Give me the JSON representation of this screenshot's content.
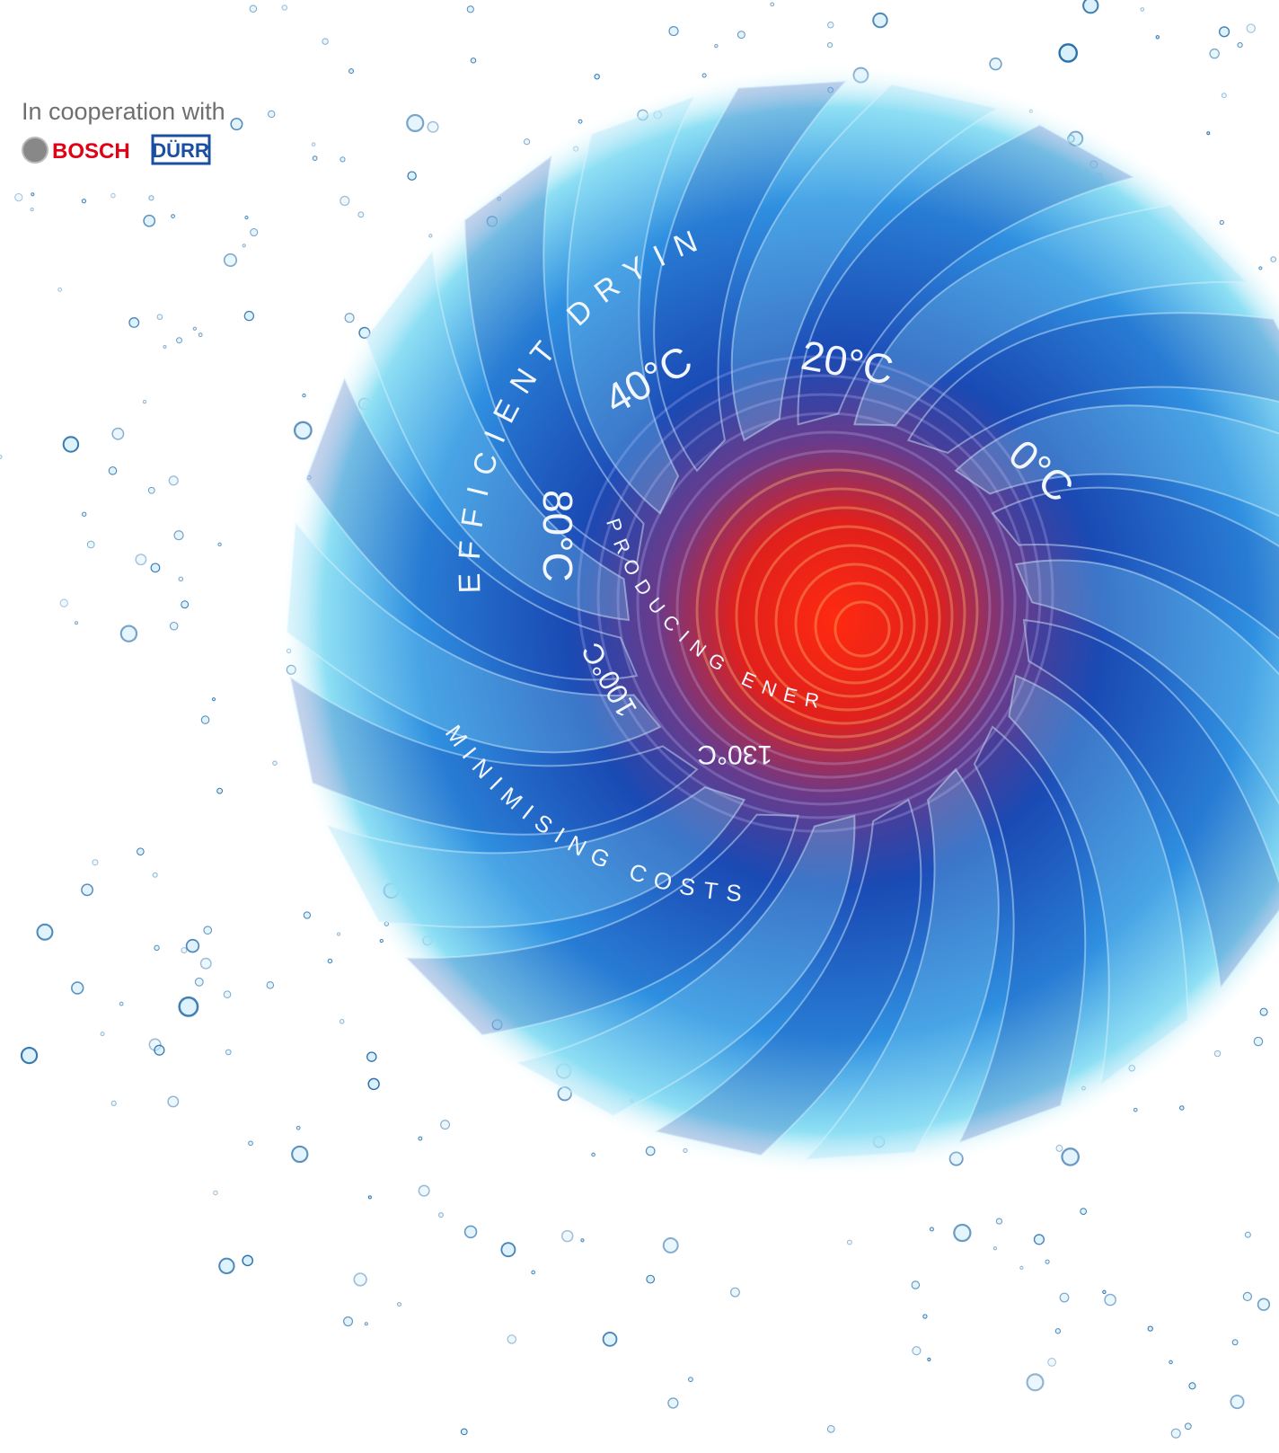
{
  "header": {
    "cooperation": "In cooperation with",
    "logos": [
      "BOSCH",
      "DÜRR"
    ]
  },
  "artwork": {
    "arcs": [
      "EFFICIENT DRYING",
      "PRODUCING ENERGY",
      "MINIMISING COSTS"
    ],
    "temperatures": [
      "0°C",
      "20°C",
      "40°C",
      "80°C",
      "100°C",
      "130°C"
    ]
  }
}
